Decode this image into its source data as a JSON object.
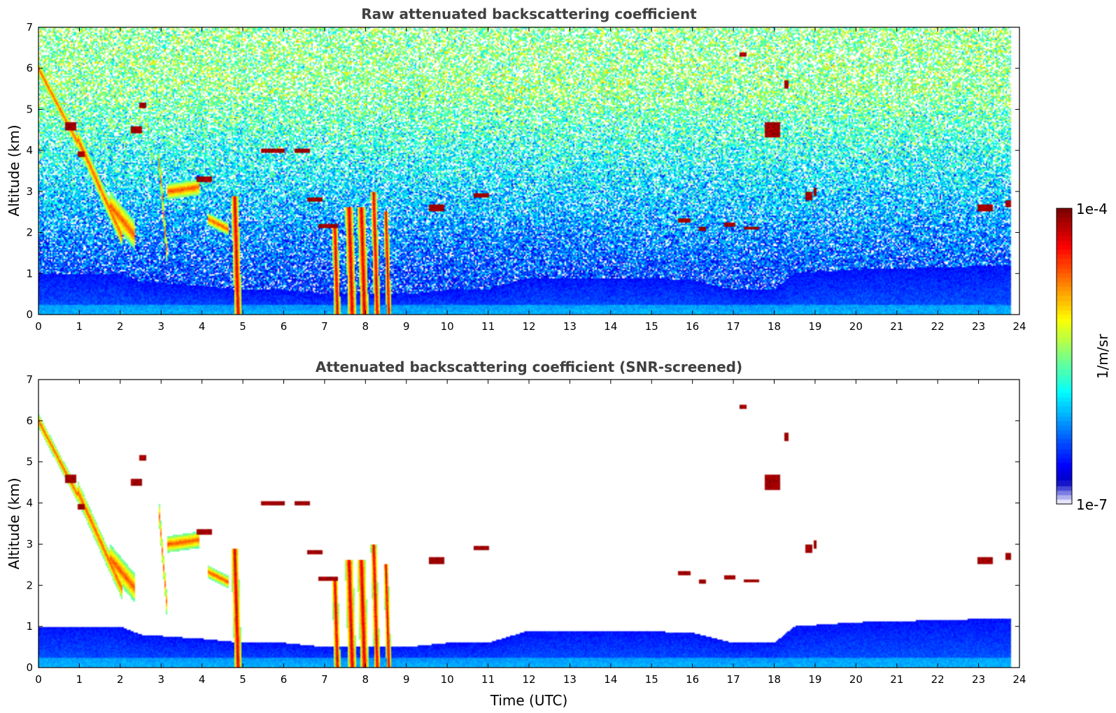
{
  "chart_data": [
    {
      "type": "heatmap",
      "title": "Raw attenuated backscattering coefficient",
      "xlabel": "",
      "ylabel": "Altitude (km)",
      "xlim": [
        0,
        24
      ],
      "ylim": [
        0,
        7
      ],
      "xticks": [
        "0",
        "1",
        "2",
        "3",
        "4",
        "5",
        "6",
        "7",
        "8",
        "9",
        "10",
        "11",
        "12",
        "13",
        "14",
        "15",
        "16",
        "17",
        "18",
        "19",
        "20",
        "21",
        "22",
        "23",
        "24"
      ],
      "yticks": [
        "0",
        "1",
        "2",
        "3",
        "4",
        "5",
        "6",
        "7"
      ],
      "screened": false,
      "grid": false
    },
    {
      "type": "heatmap",
      "title": "Attenuated backscattering coefficient (SNR-screened)",
      "xlabel": "Time (UTC)",
      "ylabel": "Altitude (km)",
      "xlim": [
        0,
        24
      ],
      "ylim": [
        0,
        7
      ],
      "xticks": [
        "0",
        "1",
        "2",
        "3",
        "4",
        "5",
        "6",
        "7",
        "8",
        "9",
        "10",
        "11",
        "12",
        "13",
        "14",
        "15",
        "16",
        "17",
        "18",
        "19",
        "20",
        "21",
        "22",
        "23",
        "24"
      ],
      "yticks": [
        "0",
        "1",
        "2",
        "3",
        "4",
        "5",
        "6",
        "7"
      ],
      "screened": true,
      "grid": false
    }
  ],
  "colorbar": {
    "label": "1/m/sr",
    "max_label": "1e-4",
    "min_label": "1e-7",
    "scale": "log",
    "colormap": "jet"
  },
  "features": {
    "boundary_layer_top_km": [
      [
        0,
        1.0
      ],
      [
        2,
        1.0
      ],
      [
        2.5,
        0.8
      ],
      [
        4,
        0.7
      ],
      [
        5,
        0.6
      ],
      [
        6,
        0.6
      ],
      [
        7,
        0.5
      ],
      [
        9,
        0.5
      ],
      [
        10,
        0.6
      ],
      [
        11,
        0.6
      ],
      [
        12,
        0.9
      ],
      [
        14,
        0.9
      ],
      [
        16,
        0.85
      ],
      [
        17,
        0.6
      ],
      [
        18,
        0.6
      ],
      [
        18.5,
        1.0
      ],
      [
        20,
        1.1
      ],
      [
        23.8,
        1.2
      ]
    ],
    "aerosol_layers": [
      {
        "t0": 0.0,
        "t1": 0.9,
        "z0": 6.0,
        "z1": 4.3,
        "thick": 0.35
      },
      {
        "t0": 1.0,
        "t1": 2.0,
        "z0": 4.2,
        "z1": 2.0,
        "thick": 0.5
      },
      {
        "t0": 1.8,
        "t1": 2.3,
        "z0": 2.6,
        "z1": 2.0,
        "thick": 0.7
      },
      {
        "t0": 3.0,
        "t1": 3.1,
        "z0": 3.2,
        "z1": 2.0,
        "thick": 0.6
      },
      {
        "t0": 3.2,
        "t1": 3.9,
        "z0": 3.0,
        "z1": 3.1,
        "thick": 0.4
      },
      {
        "t0": 4.2,
        "t1": 4.6,
        "z0": 2.3,
        "z1": 2.1,
        "thick": 0.3
      }
    ],
    "clouds": [
      {
        "t0": 0.7,
        "t1": 0.9,
        "z": 4.6,
        "w": 0.2
      },
      {
        "t0": 1.0,
        "t1": 1.1,
        "z": 3.9,
        "w": 0.15
      },
      {
        "t0": 2.3,
        "t1": 2.5,
        "z": 4.5,
        "w": 0.15
      },
      {
        "t0": 2.5,
        "t1": 2.6,
        "z": 5.1,
        "w": 0.15
      },
      {
        "t0": 3.9,
        "t1": 4.2,
        "z": 3.3,
        "w": 0.15
      },
      {
        "t0": 5.5,
        "t1": 6.0,
        "z": 4.0,
        "w": 0.12
      },
      {
        "t0": 6.3,
        "t1": 6.6,
        "z": 4.0,
        "w": 0.12
      },
      {
        "t0": 6.6,
        "t1": 6.9,
        "z": 2.8,
        "w": 0.12
      },
      {
        "t0": 6.9,
        "t1": 7.3,
        "z": 2.15,
        "w": 0.12
      },
      {
        "t0": 9.6,
        "t1": 9.9,
        "z": 2.6,
        "w": 0.15
      },
      {
        "t0": 10.7,
        "t1": 11.0,
        "z": 2.9,
        "w": 0.12
      },
      {
        "t0": 15.7,
        "t1": 15.9,
        "z": 2.3,
        "w": 0.1
      },
      {
        "t0": 16.2,
        "t1": 16.3,
        "z": 2.1,
        "w": 0.1
      },
      {
        "t0": 16.8,
        "t1": 17.0,
        "z": 2.2,
        "w": 0.1
      },
      {
        "t0": 17.3,
        "t1": 17.6,
        "z": 2.1,
        "w": 0.08
      },
      {
        "t0": 18.8,
        "t1": 18.9,
        "z": 2.9,
        "w": 0.2
      },
      {
        "t0": 19.0,
        "t1": 19.0,
        "z": 3.0,
        "w": 0.2
      },
      {
        "t0": 23.0,
        "t1": 23.3,
        "z": 2.6,
        "w": 0.15
      },
      {
        "t0": 23.7,
        "t1": 23.8,
        "z": 2.7,
        "w": 0.15
      },
      {
        "t0": 17.8,
        "t1": 18.1,
        "z": 4.5,
        "w": 0.4
      },
      {
        "t0": 18.3,
        "t1": 18.3,
        "z": 5.6,
        "w": 0.2
      },
      {
        "t0": 17.2,
        "t1": 17.3,
        "z": 6.35,
        "w": 0.1
      }
    ],
    "rain_shafts": [
      {
        "t": 4.8,
        "top": 2.9,
        "w": 0.18
      },
      {
        "t": 7.25,
        "top": 2.2,
        "w": 0.15
      },
      {
        "t": 7.6,
        "top": 2.6,
        "w": 0.2
      },
      {
        "t": 7.9,
        "top": 2.6,
        "w": 0.2
      },
      {
        "t": 8.2,
        "top": 3.0,
        "w": 0.15
      },
      {
        "t": 8.5,
        "top": 2.5,
        "w": 0.12
      }
    ],
    "data_end_time": 23.8
  }
}
